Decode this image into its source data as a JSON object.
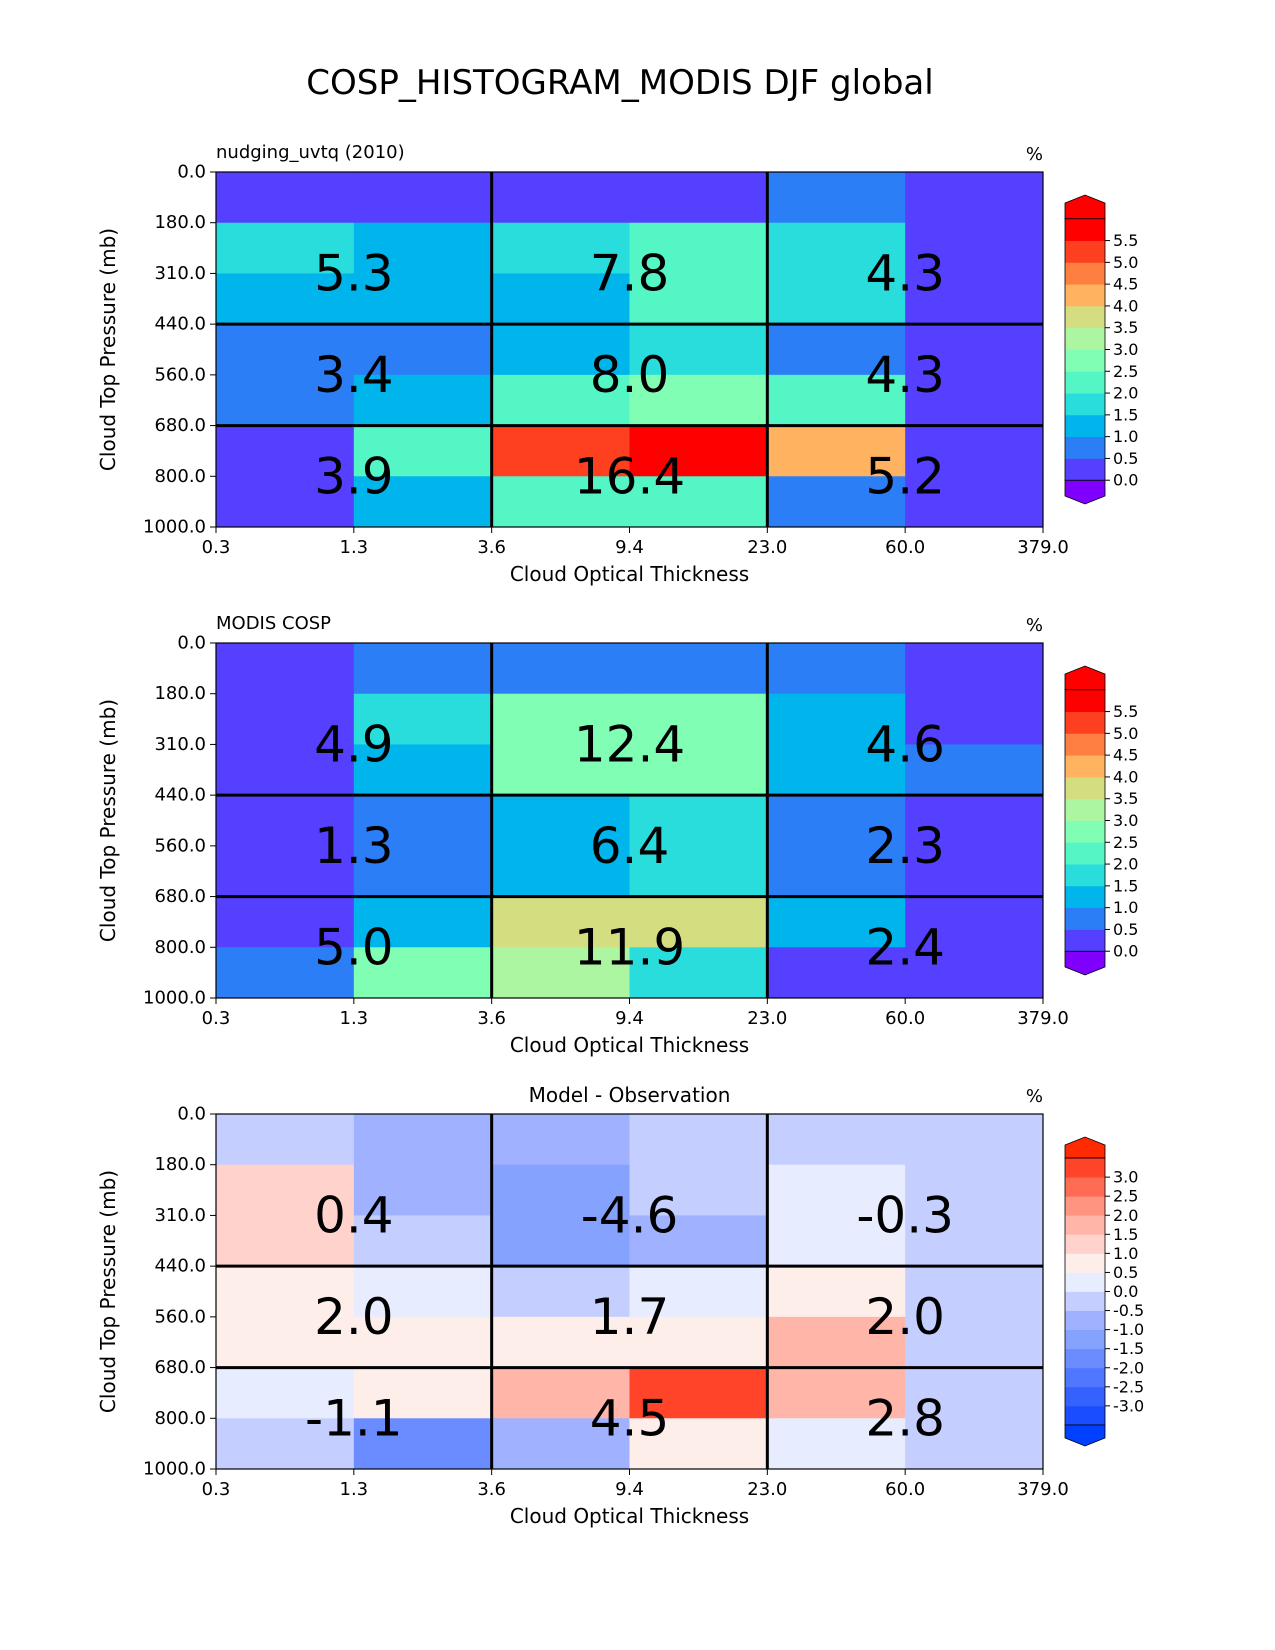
{
  "figure_title": "COSP_HISTOGRAM_MODIS DJF global",
  "chart_data": [
    {
      "type": "heatmap",
      "title": "",
      "left_label": "nudging_uvtq (2010)",
      "units": "%",
      "xlabel": "Cloud Optical Thickness",
      "ylabel": "Cloud Top Pressure (mb)",
      "x_ticks": [
        "0.3",
        "1.3",
        "3.6",
        "9.4",
        "23.0",
        "60.0",
        "379.0"
      ],
      "y_ticks": [
        "0.0",
        "180.0",
        "310.0",
        "440.0",
        "560.0",
        "680.0",
        "800.0",
        "1000.0"
      ],
      "values": [
        [
          0.3,
          0.3,
          0.3,
          0.3,
          0.8,
          0.3
        ],
        [
          1.8,
          1.3,
          1.8,
          2.3,
          1.8,
          0.3
        ],
        [
          1.3,
          1.3,
          1.3,
          2.3,
          1.8,
          0.3
        ],
        [
          0.8,
          0.8,
          1.3,
          1.8,
          0.8,
          0.3
        ],
        [
          0.8,
          1.3,
          2.3,
          2.8,
          2.3,
          0.3
        ],
        [
          0.3,
          2.3,
          5.3,
          5.8,
          4.3,
          0.3
        ],
        [
          0.3,
          1.3,
          2.3,
          2.3,
          0.8,
          0.3
        ]
      ],
      "group_sums": [
        [
          "5.3",
          "7.8",
          "4.3"
        ],
        [
          "3.4",
          "8.0",
          "4.3"
        ],
        [
          "3.9",
          "16.4",
          "5.2"
        ]
      ],
      "colorbar": {
        "ticks": [
          "0.0",
          "0.5",
          "1.0",
          "1.5",
          "2.0",
          "2.5",
          "3.0",
          "3.5",
          "4.0",
          "4.5",
          "5.0",
          "5.5"
        ],
        "min": 0,
        "max": 6,
        "step": 0.5,
        "extend": "both",
        "under_color": "#8000ff",
        "over_color": "#ff0000",
        "colors": [
          "#5640ff",
          "#2c7ef7",
          "#00b5eb",
          "#2adddd",
          "#54f6c5",
          "#80ffb4",
          "#acf6a2",
          "#d4dd80",
          "#ffb360",
          "#ff7e41",
          "#ff4020",
          "#ff0000"
        ]
      }
    },
    {
      "type": "heatmap",
      "title": "",
      "left_label": "MODIS COSP",
      "units": "%",
      "xlabel": "Cloud Optical Thickness",
      "ylabel": "Cloud Top Pressure (mb)",
      "x_ticks": [
        "0.3",
        "1.3",
        "3.6",
        "9.4",
        "23.0",
        "60.0",
        "379.0"
      ],
      "y_ticks": [
        "0.0",
        "180.0",
        "310.0",
        "440.0",
        "560.0",
        "680.0",
        "800.0",
        "1000.0"
      ],
      "values": [
        [
          0.3,
          0.8,
          0.8,
          0.8,
          0.8,
          0.3
        ],
        [
          0.3,
          1.8,
          2.8,
          2.8,
          1.3,
          0.3
        ],
        [
          0.3,
          1.3,
          2.8,
          2.8,
          1.3,
          0.8
        ],
        [
          0.3,
          0.8,
          1.3,
          1.8,
          0.8,
          0.3
        ],
        [
          0.3,
          0.8,
          1.3,
          1.8,
          0.8,
          0.3
        ],
        [
          0.3,
          1.3,
          3.8,
          3.8,
          1.3,
          0.3
        ],
        [
          0.8,
          2.8,
          3.3,
          1.8,
          0.3,
          0.3
        ]
      ],
      "group_sums": [
        [
          "4.9",
          "12.4",
          "4.6"
        ],
        [
          "1.3",
          "6.4",
          "2.3"
        ],
        [
          "5.0",
          "11.9",
          "2.4"
        ]
      ],
      "colorbar": {
        "ticks": [
          "0.0",
          "0.5",
          "1.0",
          "1.5",
          "2.0",
          "2.5",
          "3.0",
          "3.5",
          "4.0",
          "4.5",
          "5.0",
          "5.5"
        ],
        "min": 0,
        "max": 6,
        "step": 0.5,
        "extend": "both",
        "under_color": "#8000ff",
        "over_color": "#ff0000",
        "colors": [
          "#5640ff",
          "#2c7ef7",
          "#00b5eb",
          "#2adddd",
          "#54f6c5",
          "#80ffb4",
          "#acf6a2",
          "#d4dd80",
          "#ffb360",
          "#ff7e41",
          "#ff4020",
          "#ff0000"
        ]
      }
    },
    {
      "type": "heatmap",
      "title": "Model - Observation",
      "left_label": "",
      "units": "%",
      "xlabel": "Cloud Optical Thickness",
      "ylabel": "Cloud Top Pressure (mb)",
      "x_ticks": [
        "0.3",
        "1.3",
        "3.6",
        "9.4",
        "23.0",
        "60.0",
        "379.0"
      ],
      "y_ticks": [
        "0.0",
        "180.0",
        "310.0",
        "440.0",
        "560.0",
        "680.0",
        "800.0",
        "1000.0"
      ],
      "values": [
        [
          -0.2,
          -0.7,
          -0.7,
          -0.2,
          -0.2,
          -0.2
        ],
        [
          1.2,
          -0.7,
          -1.2,
          -0.2,
          0.2,
          -0.2
        ],
        [
          1.2,
          -0.2,
          -1.2,
          -0.7,
          0.2,
          -0.2
        ],
        [
          0.7,
          0.2,
          -0.2,
          0.2,
          0.7,
          -0.2
        ],
        [
          0.7,
          0.7,
          0.7,
          0.7,
          1.7,
          -0.2
        ],
        [
          0.2,
          0.7,
          1.7,
          3.2,
          1.7,
          -0.2
        ],
        [
          -0.2,
          -1.7,
          -0.7,
          0.7,
          0.2,
          -0.2
        ]
      ],
      "group_sums": [
        [
          "0.4",
          "-4.6",
          "-0.3"
        ],
        [
          "2.0",
          "1.7",
          "2.0"
        ],
        [
          "-1.1",
          "4.5",
          "2.8"
        ]
      ],
      "colorbar": {
        "ticks": [
          "-3.0",
          "-2.5",
          "-2.0",
          "-1.5",
          "-1.0",
          "-0.5",
          "0.0",
          "0.5",
          "1.0",
          "1.5",
          "2.0",
          "2.5",
          "3.0"
        ],
        "min": -3.5,
        "max": 3.5,
        "step": 0.5,
        "extend": "both",
        "under_color": "#0040ff",
        "over_color": "#ff2a00",
        "colors": [
          "#1a4dff",
          "#3562ff",
          "#4f77ff",
          "#6a8cff",
          "#86a2ff",
          "#a0b2ff",
          "#c4cfff",
          "#e8ecff",
          "#fdeeea",
          "#ffd3cc",
          "#ffb5a8",
          "#ff9480",
          "#ff6c55",
          "#ff4429"
        ]
      }
    }
  ]
}
